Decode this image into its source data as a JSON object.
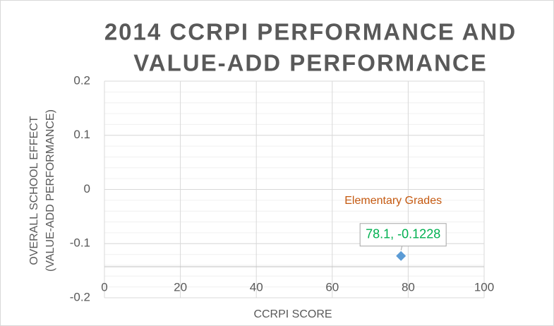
{
  "chart_data": {
    "type": "scatter",
    "title": [
      "2014 CCRPI PERFORMANCE AND",
      "VALUE-ADD PERFORMANCE"
    ],
    "xlabel": "CCRPI SCORE",
    "ylabel": [
      "OVERALL SCHOOL EFFECT",
      "(VALUE-ADD PERFORMANCE)"
    ],
    "series": [
      {
        "name": "Elementary Grades",
        "color": "#5b9bd5",
        "x": [
          78.1
        ],
        "values": [
          -0.1228
        ],
        "value_labels": [
          "78.1, -0.1228"
        ]
      }
    ],
    "xlim": [
      0,
      100
    ],
    "xticks": [
      0,
      20,
      40,
      60,
      80,
      100
    ],
    "ylim": [
      -0.2,
      0.2
    ],
    "yticks": [
      -0.2,
      -0.1,
      0,
      0.1,
      0.2
    ],
    "grid": true
  }
}
